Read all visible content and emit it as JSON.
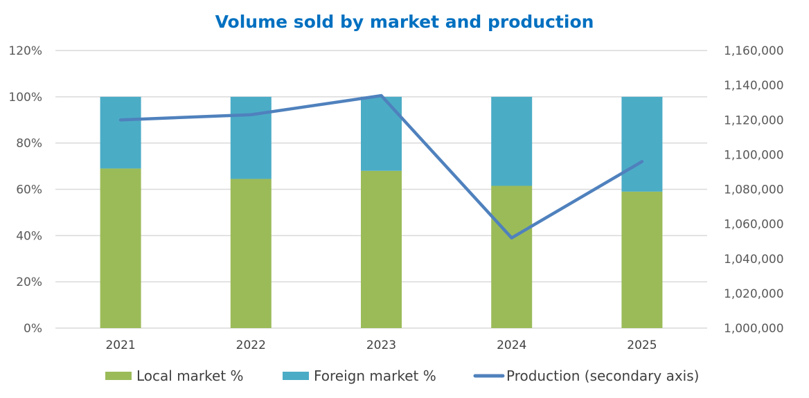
{
  "chart_data": {
    "type": "bar",
    "stacked": true,
    "title": "Volume sold by market and production",
    "categories": [
      "2021",
      "2022",
      "2023",
      "2024",
      "2025"
    ],
    "series": [
      {
        "name": "Local market %",
        "type": "bar",
        "axis": "primary",
        "color": "#9BBB59",
        "values": [
          0.69,
          0.645,
          0.68,
          0.615,
          0.59
        ]
      },
      {
        "name": "Foreign market %",
        "type": "bar",
        "axis": "primary",
        "color": "#4BACC6",
        "values": [
          0.31,
          0.355,
          0.32,
          0.385,
          0.41
        ]
      },
      {
        "name": "Production (secondary axis)",
        "type": "line",
        "axis": "secondary",
        "color": "#4F81BD",
        "values": [
          1120000,
          1123000,
          1134000,
          1052000,
          1096000
        ]
      }
    ],
    "y_axis": {
      "ylim": [
        0,
        1.2
      ],
      "ticks": [
        0,
        0.2,
        0.4,
        0.6,
        0.8,
        1.0,
        1.2
      ],
      "tick_labels": [
        "0%",
        "20%",
        "40%",
        "60%",
        "80%",
        "100%",
        "120%"
      ]
    },
    "y2_axis": {
      "ylim": [
        1000000,
        1160000
      ],
      "ticks": [
        1000000,
        1020000,
        1040000,
        1060000,
        1080000,
        1100000,
        1120000,
        1140000,
        1160000
      ],
      "tick_labels": [
        "1,000,000",
        "1,020,000",
        "1,040,000",
        "1,060,000",
        "1,080,000",
        "1,100,000",
        "1,120,000",
        "1,140,000",
        "1,160,000"
      ]
    },
    "grid": true,
    "legend_position": "bottom",
    "title_color": "#0070C0"
  }
}
